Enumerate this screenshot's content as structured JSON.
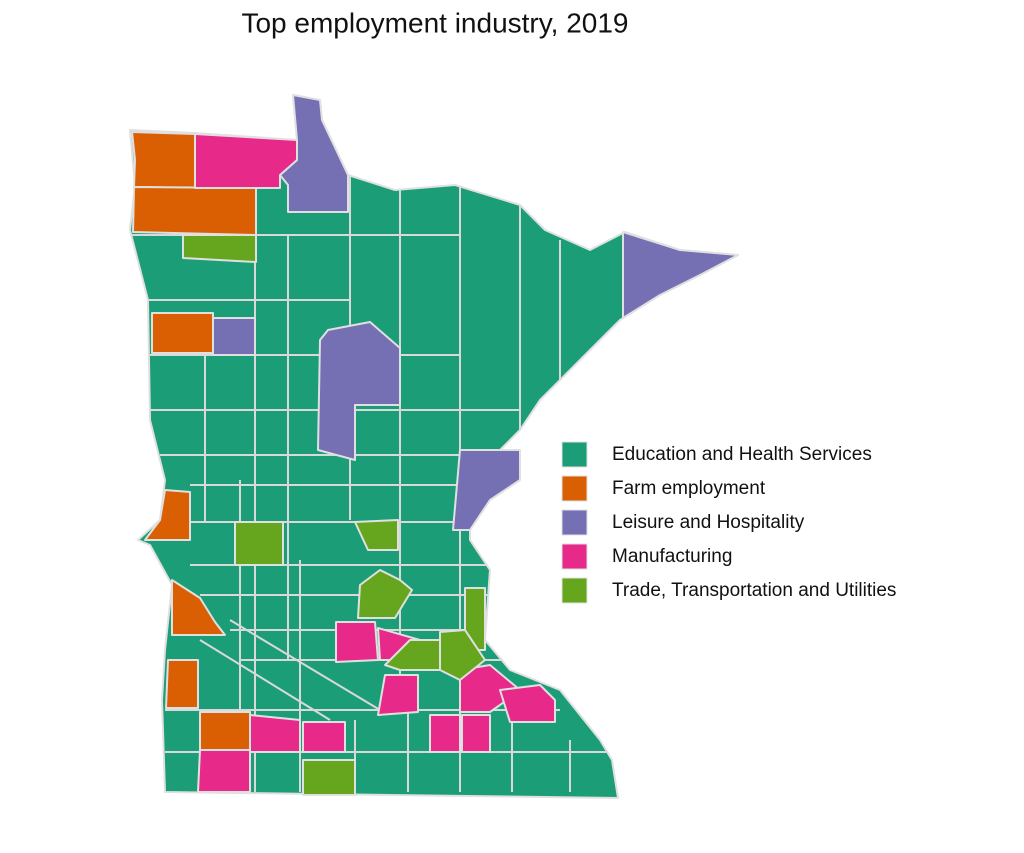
{
  "title": "Top employment industry, 2019",
  "legend": {
    "items": [
      {
        "label": "Education and Health Services",
        "color": "#1b9e77"
      },
      {
        "label": "Farm employment",
        "color": "#d95f02"
      },
      {
        "label": "Leisure and Hospitality",
        "color": "#7570b3"
      },
      {
        "label": "Manufacturing",
        "color": "#e7298a"
      },
      {
        "label": "Trade, Transportation and Utilities",
        "color": "#66a61e"
      }
    ]
  }
}
